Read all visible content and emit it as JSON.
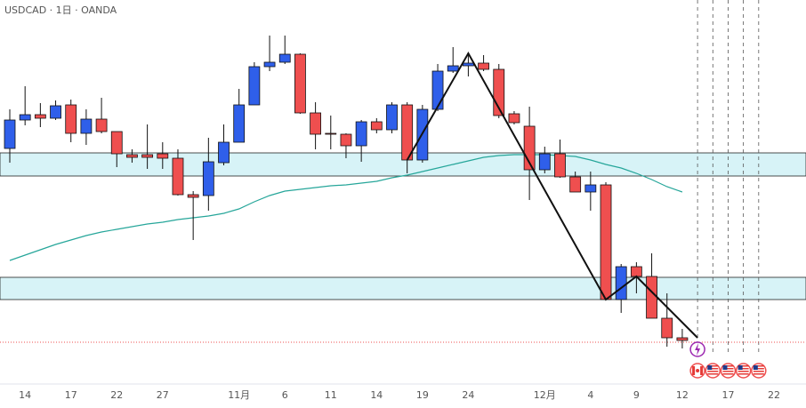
{
  "chart_data": {
    "type": "candlestick",
    "title": "USDCAD · 1日 · OANDA",
    "up_color": "#2f5fea",
    "down_color": "#ef4f4f",
    "ylim": [
      0,
      440
    ],
    "xticks": [
      {
        "value": 1,
        "label": "14"
      },
      {
        "value": 4,
        "label": "17"
      },
      {
        "value": 7,
        "label": "22"
      },
      {
        "value": 10,
        "label": "27"
      },
      {
        "value": 15,
        "label": "11月"
      },
      {
        "value": 18,
        "label": "6"
      },
      {
        "value": 21,
        "label": "11"
      },
      {
        "value": 24,
        "label": "14"
      },
      {
        "value": 27,
        "label": "19"
      },
      {
        "value": 30,
        "label": "24"
      },
      {
        "value": 35,
        "label": "12月"
      },
      {
        "value": 38,
        "label": "4"
      },
      {
        "value": 41,
        "label": "9"
      },
      {
        "value": 44,
        "label": "12"
      },
      {
        "value": 47,
        "label": "17"
      },
      {
        "value": 50,
        "label": "22"
      }
    ],
    "xlim": [
      0,
      52
    ],
    "open": [
      273,
      305,
      311,
      307,
      322,
      290,
      306,
      292,
      266,
      266,
      267,
      262,
      221,
      220,
      257,
      280,
      322,
      365,
      370,
      379,
      313,
      290,
      289,
      276,
      303,
      294,
      322,
      260,
      317,
      360,
      366,
      369,
      362,
      312,
      298,
      249,
      267,
      241,
      224,
      232,
      103,
      140,
      129,
      82,
      60
    ],
    "high": [
      317,
      343,
      324,
      327,
      328,
      317,
      330,
      292,
      272,
      300,
      280,
      272,
      225,
      285,
      300,
      340,
      370,
      400,
      400,
      380,
      325,
      310,
      290,
      305,
      307,
      325,
      325,
      322,
      368,
      387,
      380,
      378,
      368,
      315,
      320,
      275,
      283,
      247,
      247,
      235,
      143,
      145,
      155,
      110,
      70
    ],
    "low": [
      257,
      299,
      297,
      305,
      280,
      277,
      290,
      252,
      257,
      250,
      250,
      220,
      170,
      203,
      254,
      280,
      322,
      360,
      368,
      312,
      272,
      272,
      262,
      258,
      290,
      290,
      245,
      257,
      315,
      358,
      354,
      360,
      307,
      300,
      215,
      245,
      240,
      224,
      203,
      103,
      88,
      110,
      82,
      50,
      48
    ],
    "close": [
      305,
      311,
      307,
      321,
      290,
      306,
      292,
      267,
      263,
      263,
      262,
      221,
      218,
      258,
      280,
      322,
      365,
      370,
      379,
      313,
      289,
      289,
      276,
      303,
      294,
      322,
      260,
      317,
      360,
      366,
      369,
      362,
      310,
      302,
      249,
      267,
      241,
      224,
      232,
      103,
      140,
      129,
      82,
      60,
      57
    ],
    "ma": {
      "color": "#26a69a",
      "values": [
        147,
        153,
        159,
        165,
        170,
        175,
        179,
        182,
        185,
        188,
        190,
        193,
        195,
        197,
        200,
        205,
        213,
        220,
        225,
        227,
        229,
        231,
        232,
        234,
        236,
        240,
        243,
        247,
        251,
        255,
        259,
        263,
        265,
        266,
        266,
        266,
        265,
        264,
        260,
        255,
        251,
        245,
        238,
        230,
        224
      ]
    },
    "zones": [
      [
        242,
        268
      ],
      [
        103,
        128
      ]
    ],
    "zone_color": "#d7f3f7",
    "zigzag": {
      "x": [
        26,
        30,
        39,
        41,
        45
      ],
      "values": [
        260,
        380,
        103,
        129,
        60
      ]
    },
    "last_price": 55
  }
}
